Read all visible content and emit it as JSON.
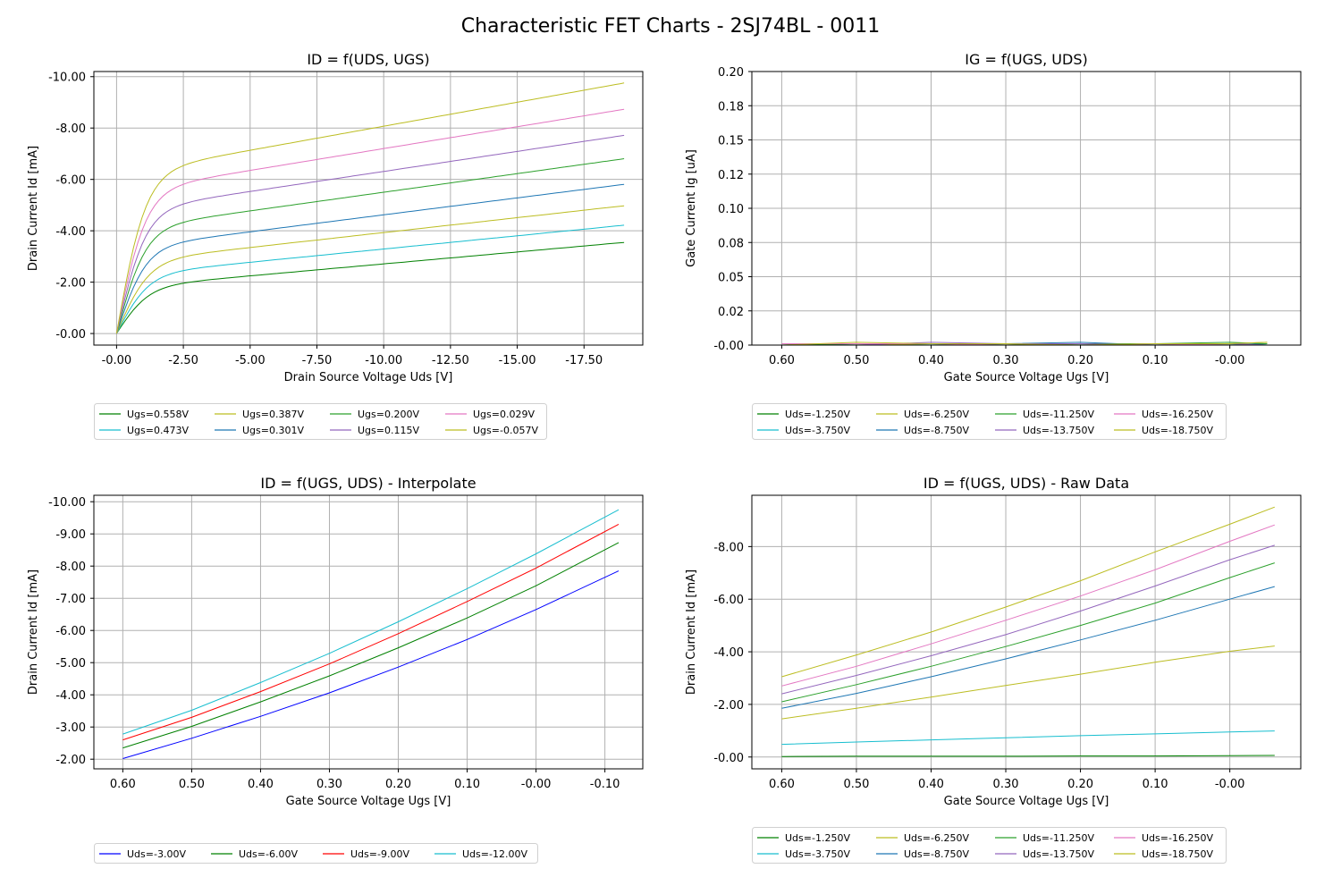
{
  "figure_title": "Characteristic FET Charts - 2SJ74BL - 0011",
  "chart_data": [
    {
      "id": "tl",
      "type": "line",
      "title": "ID = f(UDS, UGS)",
      "xlabel": "Drain Source Voltage Uds [V]",
      "ylabel": "Drain Current Id [mA]",
      "xlim": [
        0.85,
        -19.7
      ],
      "ylim": [
        0.45,
        -10.2
      ],
      "xticks": [
        0,
        -2.5,
        -5,
        -7.5,
        -10,
        -12.5,
        -15,
        -17.5
      ],
      "xtick_labels": [
        "-0.00",
        "-2.50",
        "-5.00",
        "-7.50",
        "-10.00",
        "-12.50",
        "-15.00",
        "-17.50"
      ],
      "yticks": [
        0,
        -2,
        -4,
        -6,
        -8,
        -10
      ],
      "ytick_labels": [
        "-0.00",
        "-2.00",
        "-4.00",
        "-6.00",
        "-8.00",
        "-10.00"
      ],
      "grid": true,
      "legend_location": "below",
      "legend_columns": 4,
      "series": [
        {
          "name": "Ugs=0.558V",
          "color": "#008000",
          "knee": 1.2,
          "points": [
            [
              0,
              0
            ],
            [
              -19,
              -3.52
            ]
          ],
          "sat": -1.78,
          "slope": 0.093
        },
        {
          "name": "Ugs=0.473V",
          "color": "#17becf",
          "knee": 1.2,
          "points": [
            [
              0,
              0
            ],
            [
              -19,
              -4.22
            ]
          ],
          "sat": -2.26,
          "slope": 0.103
        },
        {
          "name": "Ugs=0.387V",
          "color": "#bcbd22",
          "knee": 1.2,
          "points": [
            [
              0,
              0
            ],
            [
              -19,
              -4.97
            ]
          ],
          "sat": -2.77,
          "slope": 0.116
        },
        {
          "name": "Ugs=0.301V",
          "color": "#1f77b4",
          "knee": 1.1,
          "points": [
            [
              0,
              0
            ],
            [
              -19,
              -5.8
            ]
          ],
          "sat": -3.3,
          "slope": 0.132
        },
        {
          "name": "Ugs=0.200V",
          "color": "#2ca02c",
          "knee": 1.1,
          "points": [
            [
              0,
              0
            ],
            [
              -19,
              -6.8
            ]
          ],
          "sat": -4.05,
          "slope": 0.145
        },
        {
          "name": "Ugs=0.115V",
          "color": "#9467bd",
          "knee": 1.1,
          "points": [
            [
              0,
              0
            ],
            [
              -19,
              -7.72
            ]
          ],
          "sat": -4.75,
          "slope": 0.156
        },
        {
          "name": "Ugs=0.029V",
          "color": "#e377c2",
          "knee": 1.1,
          "points": [
            [
              0,
              0
            ],
            [
              -19,
              -8.72
            ]
          ],
          "sat": -5.5,
          "slope": 0.17
        },
        {
          "name": "Ugs=-0.057V",
          "color": "#bcbd22",
          "knee": 1.1,
          "points": [
            [
              0,
              0
            ],
            [
              -19,
              -9.75
            ]
          ],
          "sat": -6.2,
          "slope": 0.187
        }
      ]
    },
    {
      "id": "tr",
      "type": "line",
      "title": "IG = f(UGS, UDS)",
      "xlabel": "Gate Source Voltage Ugs [V]",
      "ylabel": "Gate Current Ig [uA]",
      "xlim": [
        0.64,
        -0.095
      ],
      "ylim": [
        0,
        0.2
      ],
      "xticks": [
        0.6,
        0.5,
        0.4,
        0.3,
        0.2,
        0.1,
        0
      ],
      "xtick_labels": [
        "0.60",
        "0.50",
        "0.40",
        "0.30",
        "0.20",
        "0.10",
        "-0.00"
      ],
      "yticks": [
        0,
        0.025,
        0.05,
        0.075,
        0.1,
        0.125,
        0.15,
        0.175,
        0.2
      ],
      "ytick_labels": [
        "-0.00",
        "0.02",
        "0.05",
        "0.08",
        "0.10",
        "0.12",
        "0.15",
        "0.18",
        "0.20"
      ],
      "grid": true,
      "legend_location": "below",
      "legend_columns": 4,
      "x": [
        0.6,
        0.5,
        0.4,
        0.3,
        0.2,
        0.1,
        0,
        -0.05
      ],
      "series": [
        {
          "name": "Uds=-1.250V",
          "color": "#008000",
          "values": [
            0.0,
            0.001,
            0.0,
            0.0,
            0.001,
            0.0,
            0.001,
            0.0
          ]
        },
        {
          "name": "Uds=-3.750V",
          "color": "#17becf",
          "values": [
            0.0,
            0.0,
            0.001,
            0.0,
            0.0,
            0.001,
            0.0,
            0.001
          ]
        },
        {
          "name": "Uds=-6.250V",
          "color": "#bcbd22",
          "values": [
            0.001,
            0.001,
            0.0,
            0.001,
            0.0,
            0.0,
            0.001,
            0.002
          ]
        },
        {
          "name": "Uds=-8.750V",
          "color": "#1f77b4",
          "values": [
            0.001,
            0.0,
            0.0,
            0.001,
            0.002,
            0.0,
            0.0,
            0.001
          ]
        },
        {
          "name": "Uds=-11.250V",
          "color": "#2ca02c",
          "values": [
            0.0,
            0.001,
            0.001,
            0.0,
            0.001,
            0.001,
            0.002,
            0.001
          ]
        },
        {
          "name": "Uds=-13.750V",
          "color": "#9467bd",
          "values": [
            0.0,
            0.0,
            0.002,
            0.001,
            0.001,
            0.0,
            0.001,
            0.0
          ]
        },
        {
          "name": "Uds=-16.250V",
          "color": "#e377c2",
          "values": [
            0.001,
            0.001,
            0.001,
            0.0,
            0.0,
            0.001,
            0.0,
            0.0
          ]
        },
        {
          "name": "Uds=-18.750V",
          "color": "#bcbd22",
          "values": [
            0.0,
            0.002,
            0.001,
            0.001,
            0.0,
            0.001,
            0.001,
            0.002
          ]
        }
      ]
    },
    {
      "id": "bl",
      "type": "line",
      "title": "ID = f(UGS, UDS) - Interpolate",
      "xlabel": "Gate Source Voltage Ugs [V]",
      "ylabel": "Drain Current Id [mA]",
      "xlim": [
        0.642,
        -0.155
      ],
      "ylim": [
        -1.7,
        -10.2
      ],
      "xticks": [
        0.6,
        0.5,
        0.4,
        0.3,
        0.2,
        0.1,
        0,
        -0.1
      ],
      "xtick_labels": [
        "0.60",
        "0.50",
        "0.40",
        "0.30",
        "0.20",
        "0.10",
        "-0.00",
        "-0.10"
      ],
      "yticks": [
        -2,
        -3,
        -4,
        -5,
        -6,
        -7,
        -8,
        -9,
        -10
      ],
      "ytick_labels": [
        "-2.00",
        "-3.00",
        "-4.00",
        "-5.00",
        "-6.00",
        "-7.00",
        "-8.00",
        "-9.00",
        "-10.00"
      ],
      "grid": true,
      "legend_location": "below",
      "legend_columns": 4,
      "x": [
        0.6,
        0.5,
        0.4,
        0.3,
        0.2,
        0.1,
        0,
        -0.12
      ],
      "series": [
        {
          "name": "Uds=-3.00V",
          "color": "#0000ff",
          "values": [
            -2.02,
            -2.65,
            -3.33,
            -4.06,
            -4.86,
            -5.72,
            -6.65,
            -7.85
          ]
        },
        {
          "name": "Uds=-6.00V",
          "color": "#008000",
          "values": [
            -2.35,
            -3.02,
            -3.78,
            -4.59,
            -5.46,
            -6.39,
            -7.39,
            -8.73
          ]
        },
        {
          "name": "Uds=-9.00V",
          "color": "#ff0000",
          "values": [
            -2.6,
            -3.3,
            -4.1,
            -4.96,
            -5.9,
            -6.9,
            -7.94,
            -9.3
          ]
        },
        {
          "name": "Uds=-12.00V",
          "color": "#17becf",
          "values": [
            -2.78,
            -3.52,
            -4.38,
            -5.29,
            -6.27,
            -7.3,
            -8.38,
            -9.75
          ]
        }
      ]
    },
    {
      "id": "br",
      "type": "line",
      "title": "ID = f(UGS, UDS) - Raw Data",
      "xlabel": "Gate Source Voltage Ugs [V]",
      "ylabel": "Drain Current Id [mA]",
      "xlim": [
        0.64,
        -0.095
      ],
      "ylim": [
        0.45,
        -9.95
      ],
      "xticks": [
        0.6,
        0.5,
        0.4,
        0.3,
        0.2,
        0.1,
        0
      ],
      "xtick_labels": [
        "0.60",
        "0.50",
        "0.40",
        "0.30",
        "0.20",
        "0.10",
        "-0.00"
      ],
      "yticks": [
        0,
        -2,
        -4,
        -6,
        -8
      ],
      "ytick_labels": [
        "-0.00",
        "-2.00",
        "-4.00",
        "-6.00",
        "-8.00"
      ],
      "grid": true,
      "legend_location": "below",
      "legend_columns": 4,
      "x": [
        0.6,
        0.5,
        0.4,
        0.3,
        0.2,
        0.1,
        0,
        -0.06
      ],
      "series": [
        {
          "name": "Uds=-1.250V",
          "color": "#008000",
          "values": [
            -0.02,
            -0.03,
            -0.03,
            -0.03,
            -0.04,
            -0.04,
            -0.05,
            -0.06
          ]
        },
        {
          "name": "Uds=-3.750V",
          "color": "#17becf",
          "values": [
            -0.48,
            -0.57,
            -0.65,
            -0.73,
            -0.81,
            -0.88,
            -0.95,
            -0.99
          ]
        },
        {
          "name": "Uds=-6.250V",
          "color": "#bcbd22",
          "values": [
            -1.45,
            -1.85,
            -2.28,
            -2.72,
            -3.15,
            -3.6,
            -4.02,
            -4.22
          ]
        },
        {
          "name": "Uds=-8.750V",
          "color": "#1f77b4",
          "values": [
            -1.85,
            -2.42,
            -3.05,
            -3.73,
            -4.45,
            -5.2,
            -6.0,
            -6.48
          ]
        },
        {
          "name": "Uds=-11.250V",
          "color": "#2ca02c",
          "values": [
            -2.1,
            -2.75,
            -3.45,
            -4.2,
            -5.0,
            -5.85,
            -6.82,
            -7.38
          ]
        },
        {
          "name": "Uds=-13.750V",
          "color": "#9467bd",
          "values": [
            -2.4,
            -3.1,
            -3.85,
            -4.65,
            -5.55,
            -6.5,
            -7.5,
            -8.05
          ]
        },
        {
          "name": "Uds=-16.250V",
          "color": "#e377c2",
          "values": [
            -2.7,
            -3.45,
            -4.3,
            -5.2,
            -6.12,
            -7.12,
            -8.2,
            -8.82
          ]
        },
        {
          "name": "Uds=-18.750V",
          "color": "#bcbd22",
          "values": [
            -3.05,
            -3.88,
            -4.75,
            -5.7,
            -6.7,
            -7.8,
            -8.85,
            -9.5
          ]
        }
      ]
    }
  ]
}
